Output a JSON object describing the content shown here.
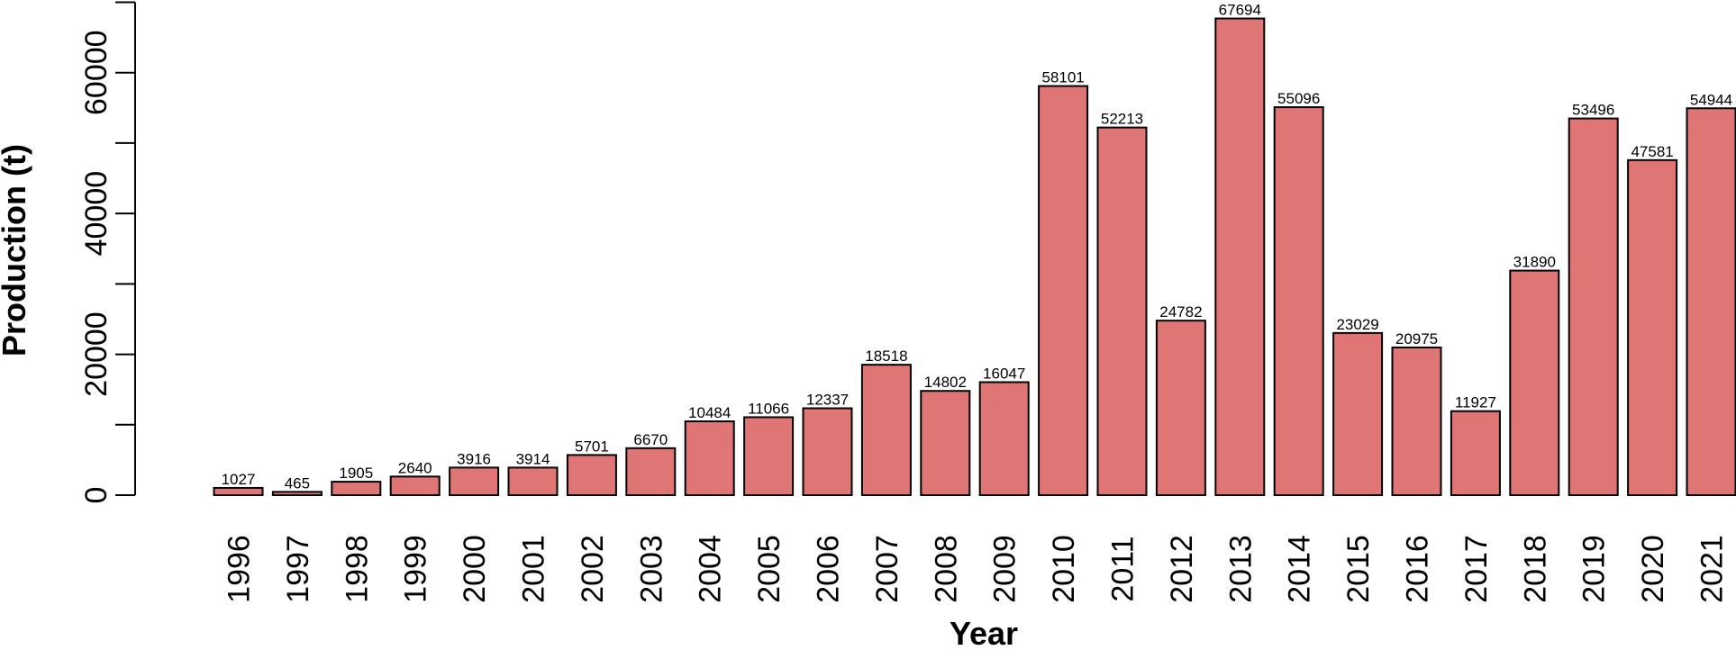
{
  "chart_data": {
    "type": "bar",
    "title": "",
    "xlabel": "Year",
    "ylabel": "Production (t)",
    "categories": [
      "1996",
      "1997",
      "1998",
      "1999",
      "2000",
      "2001",
      "2002",
      "2003",
      "2004",
      "2005",
      "2006",
      "2007",
      "2008",
      "2009",
      "2010",
      "2011",
      "2012",
      "2013",
      "2014",
      "2015",
      "2016",
      "2017",
      "2018",
      "2019",
      "2020",
      "2021"
    ],
    "values": [
      1027,
      465,
      1905,
      2640,
      3916,
      3914,
      5701,
      6670,
      10484,
      11066,
      12337,
      18518,
      14802,
      16047,
      58101,
      52213,
      24782,
      67694,
      55096,
      23029,
      20975,
      11927,
      31890,
      53496,
      47581,
      54944
    ],
    "data_labels": [
      "1027",
      "465",
      "1905",
      "2640",
      "3916",
      "3914",
      "5701",
      "6670",
      "10484",
      "11066",
      "12337",
      "18518",
      "14802",
      "16047",
      "58101",
      "52213",
      "24782",
      "67694",
      "55096",
      "23029",
      "20975",
      "11927",
      "31890",
      "53496",
      "47581",
      "54944"
    ],
    "ylim": [
      0,
      70000
    ],
    "yticks": [
      0,
      10000,
      20000,
      30000,
      40000,
      50000,
      60000,
      70000
    ],
    "ytick_labels": [
      "0",
      "",
      "20000",
      "",
      "40000",
      "",
      "60000",
      ""
    ],
    "bar_color": "#e07575",
    "bar_edge_color": "#000000",
    "grid": false,
    "legend": "none"
  }
}
